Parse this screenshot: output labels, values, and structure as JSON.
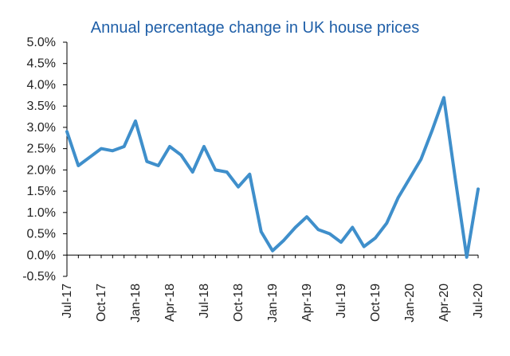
{
  "chart_data": {
    "type": "line",
    "title": "Annual percentage change in UK house prices",
    "xlabel": "",
    "ylabel": "",
    "ylim": [
      -0.5,
      5.0
    ],
    "ytick_values": [
      -0.5,
      0.0,
      0.5,
      1.0,
      1.5,
      2.0,
      2.5,
      3.0,
      3.5,
      4.0,
      4.5,
      5.0
    ],
    "ytick_labels": [
      "-0.5%",
      "0.0%",
      "0.5%",
      "1.0%",
      "1.5%",
      "2.0%",
      "2.5%",
      "3.0%",
      "3.5%",
      "4.0%",
      "4.5%",
      "5.0%"
    ],
    "x_tick_labels": [
      "Jul-17",
      "Oct-17",
      "Jan-18",
      "Apr-18",
      "Jul-18",
      "Oct-18",
      "Jan-19",
      "Apr-19",
      "Jul-19",
      "Oct-19",
      "Jan-20",
      "Apr-20",
      "Jul-20"
    ],
    "x_tick_every": 3,
    "grid": false,
    "series": [
      {
        "name": "Annual % change",
        "color": "#3f8fcb",
        "categories": [
          "Jul-17",
          "Aug-17",
          "Sep-17",
          "Oct-17",
          "Nov-17",
          "Dec-17",
          "Jan-18",
          "Feb-18",
          "Mar-18",
          "Apr-18",
          "May-18",
          "Jun-18",
          "Jul-18",
          "Aug-18",
          "Sep-18",
          "Oct-18",
          "Nov-18",
          "Dec-18",
          "Jan-19",
          "Feb-19",
          "Mar-19",
          "Apr-19",
          "May-19",
          "Jun-19",
          "Jul-19",
          "Aug-19",
          "Sep-19",
          "Oct-19",
          "Nov-19",
          "Dec-19",
          "Jan-20",
          "Feb-20",
          "Mar-20",
          "Apr-20",
          "May-20",
          "Jun-20",
          "Jul-20"
        ],
        "values": [
          2.9,
          2.1,
          2.3,
          2.5,
          2.45,
          2.55,
          3.15,
          2.2,
          2.1,
          2.55,
          2.35,
          1.95,
          2.55,
          2.0,
          1.95,
          1.6,
          1.9,
          0.55,
          0.1,
          0.35,
          0.65,
          0.9,
          0.6,
          0.5,
          0.3,
          0.65,
          0.2,
          0.4,
          0.75,
          1.35,
          1.8,
          2.25,
          2.95,
          3.7,
          1.8,
          -0.05,
          1.55
        ]
      }
    ]
  }
}
